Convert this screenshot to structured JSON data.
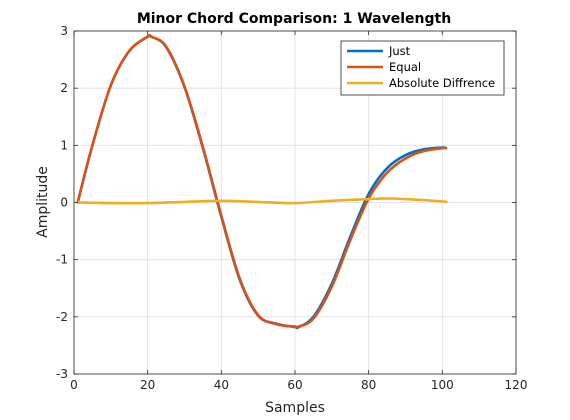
{
  "chart_data": {
    "type": "line",
    "title": "Minor Chord Comparison: 1 Wavelength",
    "xlabel": "Samples",
    "ylabel": "Amplitude",
    "xlim": [
      0,
      120
    ],
    "ylim": [
      -3,
      3
    ],
    "xticks": [
      0,
      20,
      40,
      60,
      80,
      100,
      120
    ],
    "yticks": [
      -3,
      -2,
      -1,
      0,
      1,
      2,
      3
    ],
    "grid": true,
    "legend_position": "top-right",
    "series": [
      {
        "name": "Just",
        "color": "#0072BD",
        "x": [
          1,
          5,
          10,
          15,
          20,
          21,
          25,
          30,
          35,
          40,
          45,
          50,
          55,
          60,
          61,
          65,
          70,
          75,
          80,
          85,
          90,
          95,
          100,
          101
        ],
        "y": [
          0,
          1.0,
          2.05,
          2.65,
          2.9,
          2.9,
          2.72,
          2.02,
          0.95,
          -0.25,
          -1.35,
          -1.98,
          -2.12,
          -2.18,
          -2.18,
          -2.0,
          -1.42,
          -0.6,
          0.15,
          0.6,
          0.83,
          0.93,
          0.96,
          0.95
        ]
      },
      {
        "name": "Equal",
        "color": "#D95319",
        "x": [
          1,
          5,
          10,
          15,
          20,
          21,
          25,
          30,
          35,
          40,
          45,
          50,
          55,
          60,
          61,
          65,
          70,
          75,
          80,
          85,
          90,
          95,
          100,
          101
        ],
        "y": [
          0,
          1.0,
          2.05,
          2.65,
          2.9,
          2.9,
          2.73,
          2.03,
          0.97,
          -0.23,
          -1.33,
          -1.97,
          -2.13,
          -2.17,
          -2.17,
          -2.03,
          -1.47,
          -0.66,
          0.07,
          0.52,
          0.77,
          0.9,
          0.95,
          0.95
        ]
      },
      {
        "name": "Absolute Diffrence",
        "color": "#EDB120",
        "x": [
          1,
          10,
          20,
          30,
          40,
          50,
          60,
          70,
          80,
          85,
          90,
          100,
          101
        ],
        "y": [
          0,
          -0.01,
          -0.01,
          0.01,
          0.03,
          0.01,
          -0.01,
          0.03,
          0.06,
          0.07,
          0.06,
          0.02,
          0.01
        ]
      }
    ]
  }
}
